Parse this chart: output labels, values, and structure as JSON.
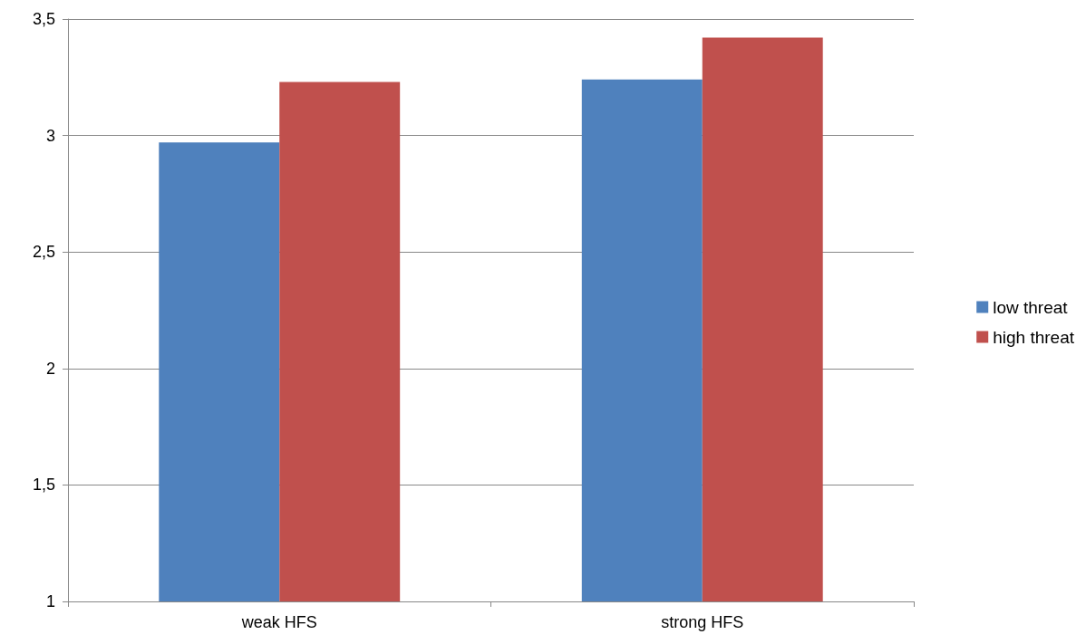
{
  "chart_data": {
    "type": "bar",
    "categories": [
      "weak HFS",
      "strong HFS"
    ],
    "series": [
      {
        "name": "low threat",
        "color": "#4f81bd",
        "values": [
          2.97,
          3.24
        ]
      },
      {
        "name": "high threat",
        "color": "#c0504d",
        "values": [
          3.23,
          3.42
        ]
      }
    ],
    "ylim": [
      1,
      3.5
    ],
    "yticks": [
      1,
      {
        "value": 1.5,
        "label": "1,5"
      },
      2,
      {
        "value": 2.5,
        "label": "2,5"
      },
      3,
      {
        "value": 3.5,
        "label": "3,5"
      }
    ],
    "grid": "y",
    "legend": "right"
  }
}
